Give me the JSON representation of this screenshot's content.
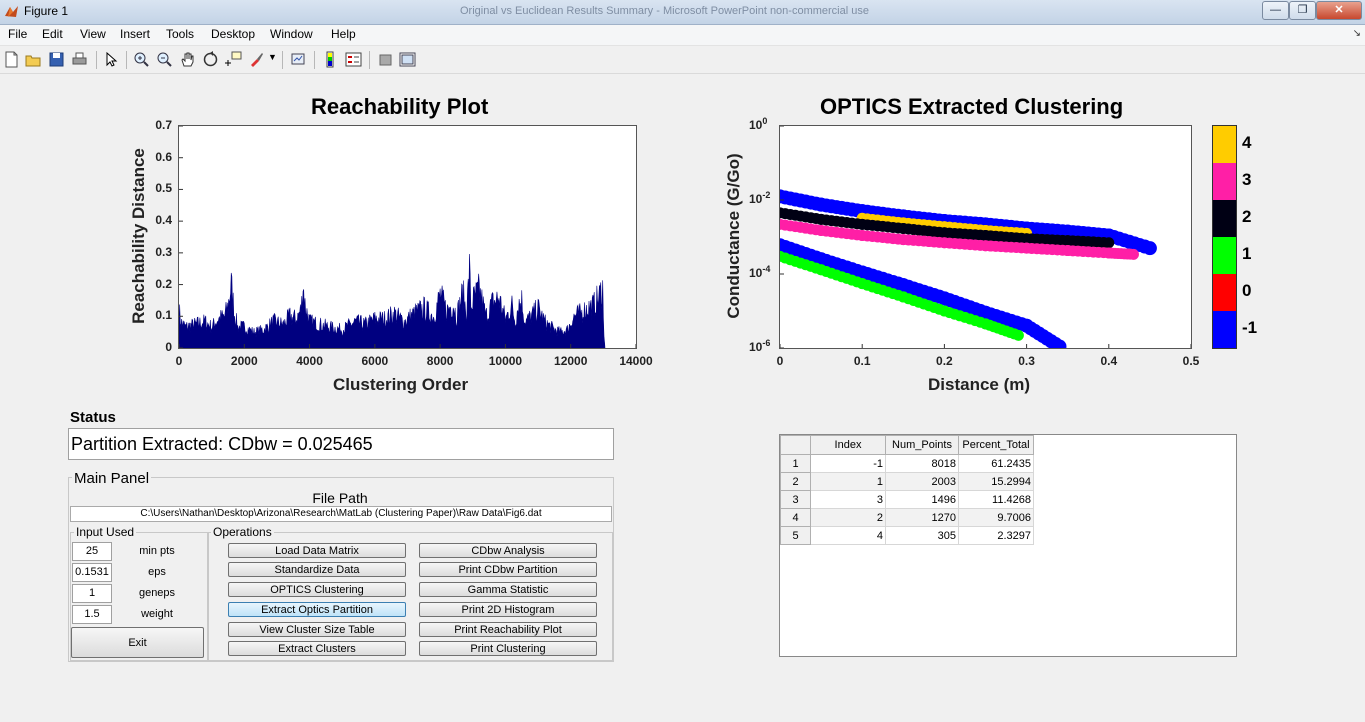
{
  "window": {
    "title": "Figure 1",
    "background_title": "Original vs Euclidean Results Summary - Microsoft PowerPoint non-commercial use"
  },
  "menu": [
    "File",
    "Edit",
    "View",
    "Insert",
    "Tools",
    "Desktop",
    "Window",
    "Help"
  ],
  "toolbar_icons": [
    "new-figure-icon",
    "open-file-icon",
    "save-icon",
    "print-icon",
    "pointer-icon",
    "zoom-in-icon",
    "zoom-out-icon",
    "pan-icon",
    "rotate-icon",
    "data-cursor-icon",
    "brush-icon",
    "link-plot-icon",
    "colorbar-icon",
    "legend-icon",
    "hide-plot-tools-icon",
    "show-plot-tools-icon"
  ],
  "reachability_plot": {
    "title": "Reachability Plot",
    "xlabel": "Clustering Order",
    "ylabel": "Reachability Distance",
    "xticks": [
      "0",
      "2000",
      "4000",
      "6000",
      "8000",
      "10000",
      "12000",
      "14000"
    ],
    "yticks": [
      "0",
      "0.1",
      "0.2",
      "0.3",
      "0.4",
      "0.5",
      "0.6",
      "0.7"
    ]
  },
  "clustering_plot": {
    "title": "OPTICS Extracted Clustering",
    "xlabel": "Distance (m)",
    "ylabel": "Conductance (G/Go)",
    "xticks": [
      "0",
      "0.1",
      "0.2",
      "0.3",
      "0.4",
      "0.5"
    ],
    "ytick_base": "10",
    "ytick_exps": [
      "0",
      "-2",
      "-4",
      "-6"
    ],
    "colorbar_labels": [
      "4",
      "3",
      "2",
      "1",
      "0",
      "-1"
    ],
    "colorbar_colors": [
      "#ffcc00",
      "#ff1fa6",
      "#000014",
      "#00ff00",
      "#ff0000",
      "#0000ff"
    ]
  },
  "chart_data": [
    {
      "type": "area",
      "title": "Reachability Plot",
      "xlabel": "Clustering Order",
      "ylabel": "Reachability Distance",
      "xlim": [
        0,
        14000
      ],
      "ylim": [
        0,
        0.7
      ],
      "color": "#000080",
      "x": [
        0,
        50,
        200,
        500,
        800,
        1000,
        1200,
        1400,
        1500,
        1600,
        1700,
        1800,
        2000,
        2300,
        2600,
        2900,
        3200,
        3400,
        3600,
        3750,
        3800,
        3850,
        4000,
        4300,
        4600,
        5000,
        5400,
        5700,
        6000,
        6300,
        6600,
        6900,
        7200,
        7500,
        7800,
        8000,
        8200,
        8400,
        8500,
        8700,
        8800,
        8900,
        8950,
        9000,
        9200,
        9400,
        9600,
        9800,
        10000,
        10200,
        10300,
        10400,
        10500,
        10600,
        10800,
        11000,
        11200,
        11500,
        11700,
        11900,
        12100,
        12300,
        12500,
        12700,
        12900,
        12980,
        13000,
        13050
      ],
      "values": [
        0.15,
        0.1,
        0.08,
        0.09,
        0.1,
        0.08,
        0.11,
        0.12,
        0.16,
        0.24,
        0.13,
        0.08,
        0.08,
        0.06,
        0.07,
        0.1,
        0.09,
        0.12,
        0.11,
        0.15,
        0.25,
        0.17,
        0.1,
        0.09,
        0.08,
        0.07,
        0.1,
        0.09,
        0.11,
        0.11,
        0.13,
        0.1,
        0.13,
        0.15,
        0.12,
        0.2,
        0.14,
        0.17,
        0.12,
        0.21,
        0.13,
        0.29,
        0.15,
        0.18,
        0.22,
        0.12,
        0.17,
        0.19,
        0.11,
        0.16,
        0.1,
        0.17,
        0.18,
        0.1,
        0.12,
        0.15,
        0.1,
        0.07,
        0.06,
        0.07,
        0.12,
        0.13,
        0.15,
        0.16,
        0.2,
        0.24,
        0.1,
        0
      ]
    },
    {
      "type": "scatter",
      "title": "OPTICS Extracted Clustering",
      "xlabel": "Distance (m)",
      "ylabel": "Conductance (G/Go)",
      "xlim": [
        0,
        0.5
      ],
      "ylim": [
        1e-06,
        1
      ],
      "yscale": "log",
      "colorbar_range": [
        -1,
        4
      ],
      "series": [
        {
          "name": "-1",
          "color": "#0000ff",
          "points": [
            [
              0,
              0.0125
            ],
            [
              0.05,
              0.0075
            ],
            [
              0.1,
              0.005
            ],
            [
              0.15,
              0.0036
            ],
            [
              0.2,
              0.0027
            ],
            [
              0.25,
              0.0022
            ],
            [
              0.3,
              0.0017
            ],
            [
              0.35,
              0.0014
            ],
            [
              0.4,
              0.0011
            ],
            [
              0.45,
              0.0005
            ],
            [
              0,
              0.0006
            ],
            [
              0.05,
              0.00025
            ],
            [
              0.1,
              0.00011
            ],
            [
              0.15,
              5e-05
            ],
            [
              0.2,
              2.2e-05
            ],
            [
              0.25,
              9e-06
            ],
            [
              0.3,
              4e-06
            ],
            [
              0.34,
              1.1e-06
            ]
          ]
        },
        {
          "name": "4",
          "color": "#ffcc00",
          "points": [
            [
              0.1,
              0.0032
            ],
            [
              0.15,
              0.0024
            ],
            [
              0.2,
              0.0019
            ],
            [
              0.25,
              0.0015
            ],
            [
              0.3,
              0.00125
            ]
          ]
        },
        {
          "name": "2",
          "color": "#000014",
          "points": [
            [
              0,
              0.0045
            ],
            [
              0.05,
              0.003
            ],
            [
              0.1,
              0.0022
            ],
            [
              0.15,
              0.0017
            ],
            [
              0.2,
              0.0013
            ],
            [
              0.25,
              0.0011
            ],
            [
              0.3,
              0.0009
            ],
            [
              0.35,
              0.0008
            ],
            [
              0.4,
              0.0007
            ]
          ]
        },
        {
          "name": "3",
          "color": "#ff1fa6",
          "points": [
            [
              0,
              0.0022
            ],
            [
              0.05,
              0.0015
            ],
            [
              0.1,
              0.0011
            ],
            [
              0.15,
              0.00085
            ],
            [
              0.2,
              0.0007
            ],
            [
              0.25,
              0.00058
            ],
            [
              0.3,
              0.0005
            ],
            [
              0.35,
              0.00043
            ],
            [
              0.4,
              0.00037
            ],
            [
              0.43,
              0.00034
            ]
          ]
        },
        {
          "name": "1",
          "color": "#00ff00",
          "points": [
            [
              0,
              0.0003
            ],
            [
              0.05,
              0.00013
            ],
            [
              0.1,
              5.5e-05
            ],
            [
              0.15,
              2.4e-05
            ],
            [
              0.2,
              1e-05
            ],
            [
              0.25,
              4.5e-06
            ],
            [
              0.29,
              2.2e-06
            ]
          ]
        }
      ]
    }
  ],
  "status": {
    "label": "Status",
    "text": "Partition Extracted: CDbw = 0.025465"
  },
  "main_panel": {
    "title": "Main Panel",
    "file_path_label": "File Path",
    "file_path": "C:\\Users\\Nathan\\Desktop\\Arizona\\Research\\MatLab (Clustering Paper)\\Raw Data\\Fig6.dat",
    "input_title": "Input Used",
    "inputs": [
      {
        "value": "25",
        "label": "min pts"
      },
      {
        "value": "0.1531",
        "label": "eps"
      },
      {
        "value": "1",
        "label": "geneps"
      },
      {
        "value": "1.5",
        "label": "weight"
      }
    ],
    "exit_label": "Exit",
    "operations_title": "Operations",
    "ops_left": [
      "Load Data Matrix",
      "Standardize Data",
      "OPTICS Clustering",
      "Extract Optics Partition",
      "View Cluster Size Table",
      "Extract Clusters"
    ],
    "ops_right": [
      "CDbw Analysis",
      "Print CDbw Partition",
      "Gamma Statistic",
      "Print 2D Histogram",
      "Print Reachability Plot",
      "Print Clustering"
    ]
  },
  "table": {
    "headers": [
      "",
      "Index",
      "Num_Points",
      "Percent_Total"
    ],
    "rows": [
      {
        "row": "1",
        "index": "-1",
        "num": "8018",
        "pct": "61.2435"
      },
      {
        "row": "2",
        "index": "1",
        "num": "2003",
        "pct": "15.2994"
      },
      {
        "row": "3",
        "index": "3",
        "num": "1496",
        "pct": "11.4268"
      },
      {
        "row": "4",
        "index": "2",
        "num": "1270",
        "pct": "9.7006"
      },
      {
        "row": "5",
        "index": "4",
        "num": "305",
        "pct": "2.3297"
      }
    ]
  }
}
